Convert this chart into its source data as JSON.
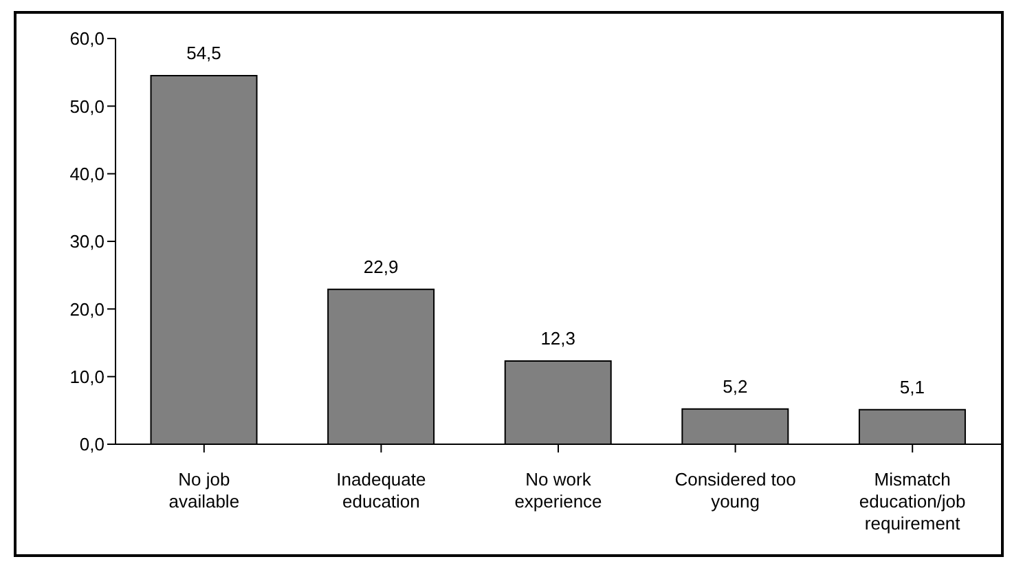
{
  "chart_data": {
    "type": "bar",
    "categories": [
      "No job available",
      "Inadequate education",
      "No work experience",
      "Considered too young",
      "Mismatch education/job requirement"
    ],
    "values": [
      54.5,
      22.9,
      12.3,
      5.2,
      5.1
    ],
    "value_labels": [
      "54,5",
      "22,9",
      "12,3",
      "5,2",
      "5,1"
    ],
    "color": "#808080",
    "ylim": [
      0,
      60
    ],
    "yticks": [
      {
        "value": 0,
        "label": "0,0"
      },
      {
        "value": 10,
        "label": "10,0"
      },
      {
        "value": 20,
        "label": "20,0"
      },
      {
        "value": 30,
        "label": "30,0"
      },
      {
        "value": 40,
        "label": "40,0"
      },
      {
        "value": 50,
        "label": "50,0"
      },
      {
        "value": 60,
        "label": "60,0"
      }
    ],
    "grid": false,
    "legend": false
  }
}
